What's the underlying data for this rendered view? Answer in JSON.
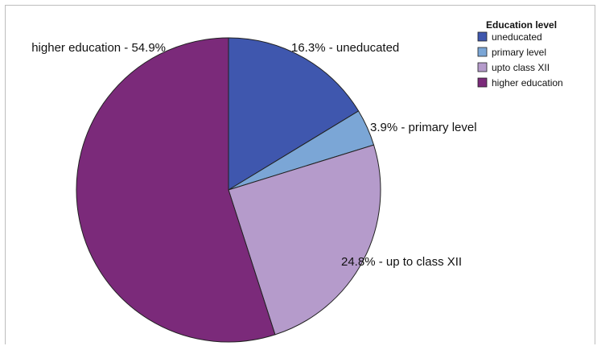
{
  "chart_data": {
    "type": "pie",
    "legend": {
      "title": "Education level",
      "placement": "top-right"
    },
    "slices": [
      {
        "name": "uneducated",
        "value": 16.3,
        "label": "16.3% - uneducated",
        "color": "#3F57AE"
      },
      {
        "name": "primary level",
        "value": 3.9,
        "label": "3.9% - primary level",
        "color": "#7BA6D6"
      },
      {
        "name": "upto class XII",
        "value": 24.8,
        "label": "24.8% - up to class XII",
        "color": "#B59BCB"
      },
      {
        "name": "higher education",
        "value": 54.9,
        "label": "higher education - 54.9%",
        "color": "#7B2A7A"
      }
    ]
  }
}
